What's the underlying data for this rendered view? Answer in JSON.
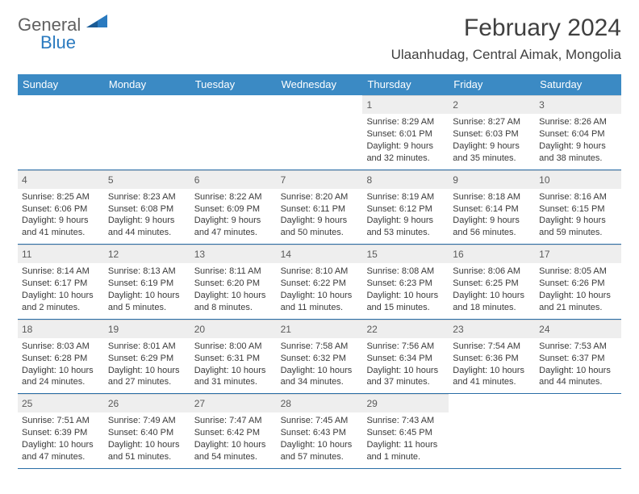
{
  "logo": {
    "part1": "General",
    "part2": "Blue"
  },
  "title": "February 2024",
  "location": "Ulaanhudag, Central Aimak, Mongolia",
  "colors": {
    "header_bg": "#3b8ac4",
    "header_text": "#ffffff",
    "daynum_bg": "#eeeeee",
    "body_text": "#3a3a3a",
    "divider": "#2a6ea7",
    "logo_blue": "#2a7abf",
    "logo_gray": "#606060"
  },
  "dayHeaders": [
    "Sunday",
    "Monday",
    "Tuesday",
    "Wednesday",
    "Thursday",
    "Friday",
    "Saturday"
  ],
  "weeks": [
    [
      {
        "n": "",
        "sr": "",
        "ss": "",
        "dl": ""
      },
      {
        "n": "",
        "sr": "",
        "ss": "",
        "dl": ""
      },
      {
        "n": "",
        "sr": "",
        "ss": "",
        "dl": ""
      },
      {
        "n": "",
        "sr": "",
        "ss": "",
        "dl": ""
      },
      {
        "n": "1",
        "sr": "Sunrise: 8:29 AM",
        "ss": "Sunset: 6:01 PM",
        "dl": "Daylight: 9 hours and 32 minutes."
      },
      {
        "n": "2",
        "sr": "Sunrise: 8:27 AM",
        "ss": "Sunset: 6:03 PM",
        "dl": "Daylight: 9 hours and 35 minutes."
      },
      {
        "n": "3",
        "sr": "Sunrise: 8:26 AM",
        "ss": "Sunset: 6:04 PM",
        "dl": "Daylight: 9 hours and 38 minutes."
      }
    ],
    [
      {
        "n": "4",
        "sr": "Sunrise: 8:25 AM",
        "ss": "Sunset: 6:06 PM",
        "dl": "Daylight: 9 hours and 41 minutes."
      },
      {
        "n": "5",
        "sr": "Sunrise: 8:23 AM",
        "ss": "Sunset: 6:08 PM",
        "dl": "Daylight: 9 hours and 44 minutes."
      },
      {
        "n": "6",
        "sr": "Sunrise: 8:22 AM",
        "ss": "Sunset: 6:09 PM",
        "dl": "Daylight: 9 hours and 47 minutes."
      },
      {
        "n": "7",
        "sr": "Sunrise: 8:20 AM",
        "ss": "Sunset: 6:11 PM",
        "dl": "Daylight: 9 hours and 50 minutes."
      },
      {
        "n": "8",
        "sr": "Sunrise: 8:19 AM",
        "ss": "Sunset: 6:12 PM",
        "dl": "Daylight: 9 hours and 53 minutes."
      },
      {
        "n": "9",
        "sr": "Sunrise: 8:18 AM",
        "ss": "Sunset: 6:14 PM",
        "dl": "Daylight: 9 hours and 56 minutes."
      },
      {
        "n": "10",
        "sr": "Sunrise: 8:16 AM",
        "ss": "Sunset: 6:15 PM",
        "dl": "Daylight: 9 hours and 59 minutes."
      }
    ],
    [
      {
        "n": "11",
        "sr": "Sunrise: 8:14 AM",
        "ss": "Sunset: 6:17 PM",
        "dl": "Daylight: 10 hours and 2 minutes."
      },
      {
        "n": "12",
        "sr": "Sunrise: 8:13 AM",
        "ss": "Sunset: 6:19 PM",
        "dl": "Daylight: 10 hours and 5 minutes."
      },
      {
        "n": "13",
        "sr": "Sunrise: 8:11 AM",
        "ss": "Sunset: 6:20 PM",
        "dl": "Daylight: 10 hours and 8 minutes."
      },
      {
        "n": "14",
        "sr": "Sunrise: 8:10 AM",
        "ss": "Sunset: 6:22 PM",
        "dl": "Daylight: 10 hours and 11 minutes."
      },
      {
        "n": "15",
        "sr": "Sunrise: 8:08 AM",
        "ss": "Sunset: 6:23 PM",
        "dl": "Daylight: 10 hours and 15 minutes."
      },
      {
        "n": "16",
        "sr": "Sunrise: 8:06 AM",
        "ss": "Sunset: 6:25 PM",
        "dl": "Daylight: 10 hours and 18 minutes."
      },
      {
        "n": "17",
        "sr": "Sunrise: 8:05 AM",
        "ss": "Sunset: 6:26 PM",
        "dl": "Daylight: 10 hours and 21 minutes."
      }
    ],
    [
      {
        "n": "18",
        "sr": "Sunrise: 8:03 AM",
        "ss": "Sunset: 6:28 PM",
        "dl": "Daylight: 10 hours and 24 minutes."
      },
      {
        "n": "19",
        "sr": "Sunrise: 8:01 AM",
        "ss": "Sunset: 6:29 PM",
        "dl": "Daylight: 10 hours and 27 minutes."
      },
      {
        "n": "20",
        "sr": "Sunrise: 8:00 AM",
        "ss": "Sunset: 6:31 PM",
        "dl": "Daylight: 10 hours and 31 minutes."
      },
      {
        "n": "21",
        "sr": "Sunrise: 7:58 AM",
        "ss": "Sunset: 6:32 PM",
        "dl": "Daylight: 10 hours and 34 minutes."
      },
      {
        "n": "22",
        "sr": "Sunrise: 7:56 AM",
        "ss": "Sunset: 6:34 PM",
        "dl": "Daylight: 10 hours and 37 minutes."
      },
      {
        "n": "23",
        "sr": "Sunrise: 7:54 AM",
        "ss": "Sunset: 6:36 PM",
        "dl": "Daylight: 10 hours and 41 minutes."
      },
      {
        "n": "24",
        "sr": "Sunrise: 7:53 AM",
        "ss": "Sunset: 6:37 PM",
        "dl": "Daylight: 10 hours and 44 minutes."
      }
    ],
    [
      {
        "n": "25",
        "sr": "Sunrise: 7:51 AM",
        "ss": "Sunset: 6:39 PM",
        "dl": "Daylight: 10 hours and 47 minutes."
      },
      {
        "n": "26",
        "sr": "Sunrise: 7:49 AM",
        "ss": "Sunset: 6:40 PM",
        "dl": "Daylight: 10 hours and 51 minutes."
      },
      {
        "n": "27",
        "sr": "Sunrise: 7:47 AM",
        "ss": "Sunset: 6:42 PM",
        "dl": "Daylight: 10 hours and 54 minutes."
      },
      {
        "n": "28",
        "sr": "Sunrise: 7:45 AM",
        "ss": "Sunset: 6:43 PM",
        "dl": "Daylight: 10 hours and 57 minutes."
      },
      {
        "n": "29",
        "sr": "Sunrise: 7:43 AM",
        "ss": "Sunset: 6:45 PM",
        "dl": "Daylight: 11 hours and 1 minute."
      },
      {
        "n": "",
        "sr": "",
        "ss": "",
        "dl": ""
      },
      {
        "n": "",
        "sr": "",
        "ss": "",
        "dl": ""
      }
    ]
  ]
}
